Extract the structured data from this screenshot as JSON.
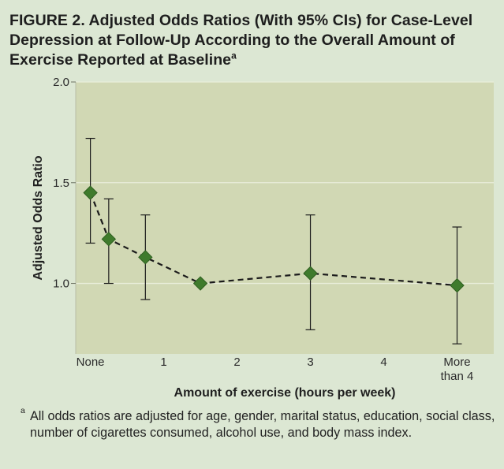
{
  "figure": {
    "title": "FIGURE 2. Adjusted Odds Ratios (With 95% CIs) for Case-Level Depression at Follow-Up According to the Overall Amount of Exercise Reported at Baseline",
    "title_footnote_marker": "a",
    "footnote_letter": "a",
    "footnote_text": "All odds ratios are adjusted for age, gender, marital status, education, social class, number of cigarettes consumed, alcohol use, and body mass index."
  },
  "chart_data": {
    "type": "line",
    "title": "Adjusted Odds Ratios (With 95% CIs) for Case-Level Depression at Follow-Up According to the Overall Amount of Exercise Reported at Baseline",
    "xlabel": "Amount of exercise (hours per week)",
    "ylabel": "Adjusted Odds Ratio",
    "xlim": [
      -0.2,
      5.5
    ],
    "ylim": [
      0.65,
      2.0
    ],
    "grid": true,
    "colors": {
      "plot_background": "#d1d8b4",
      "page_background": "#dce7d3",
      "marker": "#3f7b2c",
      "line": "#1b1b1b",
      "grid": "#e9eddb",
      "text": "#2b2b2b"
    },
    "x_ticks": [
      {
        "value": 0,
        "label": [
          "None"
        ]
      },
      {
        "value": 1,
        "label": [
          "1"
        ]
      },
      {
        "value": 2,
        "label": [
          "2"
        ]
      },
      {
        "value": 3,
        "label": [
          "3"
        ]
      },
      {
        "value": 4,
        "label": [
          "4"
        ]
      },
      {
        "value": 5,
        "label": [
          "More",
          "than 4"
        ]
      }
    ],
    "y_ticks": [
      {
        "value": 1.0,
        "label": "1.0"
      },
      {
        "value": 1.5,
        "label": "1.5"
      },
      {
        "value": 2.0,
        "label": "2.0"
      }
    ],
    "series": [
      {
        "name": "Adjusted odds ratio",
        "points": [
          {
            "x": 0.0,
            "y": 1.45,
            "lower": 1.2,
            "upper": 1.72
          },
          {
            "x": 0.25,
            "y": 1.22,
            "lower": 1.0,
            "upper": 1.42
          },
          {
            "x": 0.75,
            "y": 1.13,
            "lower": 0.92,
            "upper": 1.34
          },
          {
            "x": 1.5,
            "y": 1.0,
            "lower": null,
            "upper": null
          },
          {
            "x": 3.0,
            "y": 1.05,
            "lower": 0.77,
            "upper": 1.34
          },
          {
            "x": 5.0,
            "y": 0.99,
            "lower": 0.7,
            "upper": 1.28
          }
        ]
      }
    ]
  }
}
